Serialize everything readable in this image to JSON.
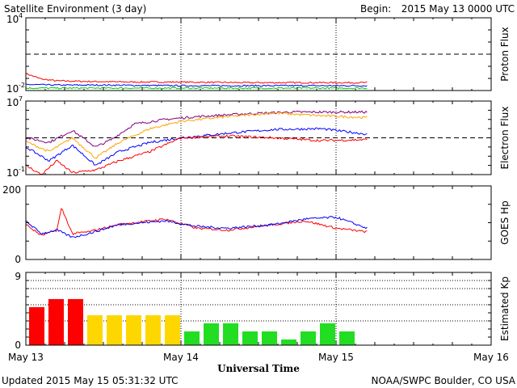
{
  "header": {
    "title": "Satellite Environment (3 day)",
    "begin_label": "Begin:",
    "begin_value": "2015 May 13 0000 UTC"
  },
  "footer": {
    "updated": "Updated 2015 May 15 05:31:32 UTC",
    "credit": "NOAA/SWPC Boulder, CO USA"
  },
  "x_axis": {
    "label": "Universal Time",
    "ticks": [
      "May 13",
      "May 14",
      "May 15",
      "May 16"
    ],
    "range_days": [
      0,
      3
    ]
  },
  "chart_data": [
    {
      "type": "line",
      "name": "proton",
      "ylabel": "Proton Flux",
      "yscale": "log",
      "ylim_exp": [
        -2,
        4
      ],
      "tick_labels": [
        {
          "base": "10",
          "exp": "4"
        },
        {
          "base": "10",
          "exp": "-2"
        }
      ],
      "threshold_exp": 1,
      "series": [
        {
          "color": "#ff0000",
          "x": [
            0,
            0.1,
            0.2,
            0.4,
            0.7,
            1.0,
            1.4,
            1.8,
            2.2
          ],
          "y_exp": [
            -0.6,
            -1.05,
            -1.2,
            -1.25,
            -1.3,
            -1.3,
            -1.35,
            -1.35,
            -1.35
          ]
        },
        {
          "color": "#0000ff",
          "x": [
            0,
            0.2,
            0.5,
            1.0,
            1.5,
            2.2
          ],
          "y_exp": [
            -1.5,
            -1.55,
            -1.55,
            -1.6,
            -1.6,
            -1.6
          ]
        },
        {
          "color": "#00cc00",
          "x": [
            0,
            0.5,
            1.0,
            1.5,
            2.2
          ],
          "y_exp": [
            -1.8,
            -1.8,
            -1.8,
            -1.8,
            -1.8
          ]
        }
      ]
    },
    {
      "type": "line",
      "name": "electron",
      "ylabel": "Electron Flux",
      "yscale": "log",
      "ylim_exp": [
        -1,
        7
      ],
      "tick_labels": [
        {
          "base": "10",
          "exp": "7"
        },
        {
          "base": "10",
          "exp": "-1"
        }
      ],
      "threshold_exp": 3,
      "series": [
        {
          "color": "#800080",
          "x": [
            0,
            0.15,
            0.3,
            0.45,
            0.55,
            0.7,
            0.9,
            1.1,
            1.4,
            1.7,
            2.0,
            2.2
          ],
          "y_exp": [
            3.0,
            2.5,
            3.8,
            2.0,
            2.8,
            4.5,
            5.0,
            5.3,
            5.6,
            5.8,
            5.8,
            5.8
          ]
        },
        {
          "color": "#ffa500",
          "x": [
            0,
            0.15,
            0.3,
            0.45,
            0.6,
            0.8,
            1.0,
            1.3,
            1.6,
            1.9,
            2.2
          ],
          "y_exp": [
            2.6,
            1.5,
            3.0,
            0.8,
            2.5,
            4.0,
            4.8,
            5.3,
            5.7,
            5.4,
            5.2
          ]
        },
        {
          "color": "#0000ff",
          "x": [
            0,
            0.15,
            0.3,
            0.45,
            0.6,
            0.8,
            1.0,
            1.3,
            1.6,
            1.9,
            2.2
          ],
          "y_exp": [
            2.0,
            0.5,
            2.2,
            0.0,
            1.5,
            2.5,
            3.0,
            3.5,
            3.9,
            4.0,
            3.4
          ]
        },
        {
          "color": "#ff0000",
          "x": [
            0,
            0.1,
            0.2,
            0.3,
            0.45,
            0.6,
            0.8,
            1.0,
            1.3,
            1.6,
            1.9,
            2.2
          ],
          "y_exp": [
            0.0,
            -1.0,
            0.5,
            -0.8,
            -0.5,
            0.5,
            1.5,
            3.0,
            3.2,
            3.0,
            2.7,
            2.8
          ]
        }
      ]
    },
    {
      "type": "line",
      "name": "goes_hp",
      "ylabel": "GOES Hp",
      "ylim": [
        0,
        200
      ],
      "tick_labels": [
        "200",
        "0"
      ],
      "series": [
        {
          "color": "#ff0000",
          "x": [
            0,
            0.1,
            0.2,
            0.23,
            0.3,
            0.4,
            0.6,
            0.9,
            1.1,
            1.3,
            1.6,
            1.8,
            2.0,
            2.2
          ],
          "y": [
            95,
            65,
            80,
            140,
            70,
            75,
            95,
            110,
            85,
            80,
            95,
            105,
            85,
            75
          ]
        },
        {
          "color": "#0000ff",
          "x": [
            0,
            0.1,
            0.2,
            0.3,
            0.4,
            0.6,
            0.9,
            1.1,
            1.3,
            1.6,
            1.8,
            2.0,
            2.2
          ],
          "y": [
            105,
            70,
            80,
            60,
            70,
            95,
            105,
            90,
            85,
            95,
            110,
            115,
            85
          ]
        }
      ]
    },
    {
      "type": "bar",
      "name": "kp",
      "ylabel": "Estimated Kp",
      "ylim": [
        0,
        9
      ],
      "tick_labels": [
        "9",
        "0"
      ],
      "bar_width_days": 0.125,
      "values": [
        4.7,
        5.7,
        5.7,
        3.7,
        3.7,
        3.7,
        3.7,
        3.7,
        1.7,
        2.7,
        2.7,
        1.7,
        1.7,
        0.7,
        1.7,
        2.7,
        1.7
      ],
      "colors": [
        "#ff0000",
        "#ff0000",
        "#ff0000",
        "#ffd700",
        "#ffd700",
        "#ffd700",
        "#ffd700",
        "#ffd700",
        "#22dd22",
        "#22dd22",
        "#22dd22",
        "#22dd22",
        "#22dd22",
        "#22dd22",
        "#22dd22",
        "#22dd22",
        "#22dd22"
      ]
    }
  ]
}
